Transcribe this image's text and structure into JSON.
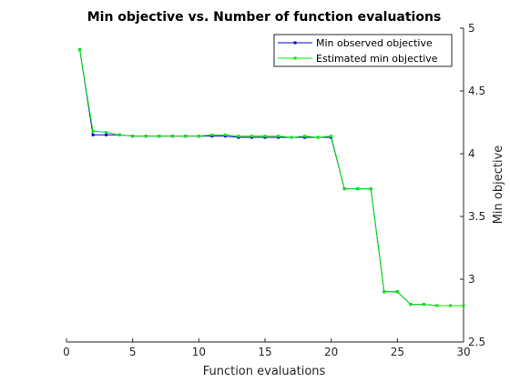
{
  "chart_data": {
    "type": "line",
    "title": "Min objective vs. Number of function evaluations",
    "xlabel": "Function evaluations",
    "ylabel": "Min objective",
    "xlim": [
      0,
      30
    ],
    "ylim": [
      2.5,
      5
    ],
    "x_ticks": [
      "0",
      "5",
      "10",
      "15",
      "20",
      "25",
      "30"
    ],
    "y_ticks": [
      "2.5",
      "3",
      "3.5",
      "4",
      "4.5",
      "5"
    ],
    "y_axis_side": "right",
    "grid": false,
    "legend_position": "top-right",
    "x": [
      1,
      2,
      3,
      4,
      5,
      6,
      7,
      8,
      9,
      10,
      11,
      12,
      13,
      14,
      15,
      16,
      17,
      18,
      19,
      20,
      21,
      22,
      23,
      24,
      25,
      26,
      27,
      28,
      29,
      30
    ],
    "series": [
      {
        "name": "Min observed objective",
        "color": "#0000cc",
        "values": [
          4.83,
          4.15,
          4.15,
          4.15,
          4.14,
          4.14,
          4.14,
          4.14,
          4.14,
          4.14,
          4.14,
          4.14,
          4.13,
          4.13,
          4.13,
          4.13,
          4.13,
          4.13,
          4.13,
          4.13,
          3.72,
          3.72,
          3.72,
          2.9,
          2.9,
          2.8,
          2.8,
          2.79,
          2.79,
          2.79
        ]
      },
      {
        "name": "Estimated min objective",
        "color": "#00ee00",
        "values": [
          4.83,
          4.18,
          4.17,
          4.15,
          4.14,
          4.14,
          4.14,
          4.14,
          4.14,
          4.14,
          4.15,
          4.15,
          4.14,
          4.14,
          4.14,
          4.14,
          4.13,
          4.14,
          4.13,
          4.14,
          3.72,
          3.72,
          3.72,
          2.9,
          2.9,
          2.8,
          2.8,
          2.79,
          2.79,
          2.79
        ]
      }
    ]
  }
}
